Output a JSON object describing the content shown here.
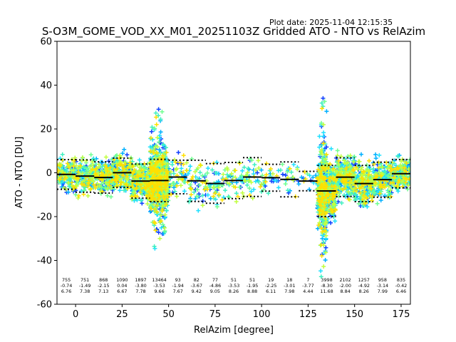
{
  "chart_data": {
    "type": "scatter",
    "plot_date": "Plot date: 2025-11-04 12:15:35",
    "title": "S-O3M_GOME_VOD_XX_M01_20251103Z Gridded ATO - NTO vs RelAzim",
    "xlabel": "RelAzim [degree]",
    "ylabel": "ATO - NTO [DU]",
    "xlim": [
      -10,
      180
    ],
    "ylim": [
      -60,
      60
    ],
    "xticks": [
      0,
      25,
      50,
      75,
      100,
      125,
      150,
      175
    ],
    "yticks": [
      -60,
      -40,
      -20,
      0,
      20,
      40,
      60
    ],
    "bins": [
      {
        "lo": -10,
        "hi": 0,
        "count": "755",
        "mean": "-0.74",
        "std": "6.76"
      },
      {
        "lo": 0,
        "hi": 10,
        "count": "751",
        "mean": "-1.49",
        "std": "7.38"
      },
      {
        "lo": 10,
        "hi": 20,
        "count": "868",
        "mean": "-2.15",
        "std": "7.13"
      },
      {
        "lo": 20,
        "hi": 30,
        "count": "1090",
        "mean": "0.04",
        "std": "6.67"
      },
      {
        "lo": 30,
        "hi": 40,
        "count": "1897",
        "mean": "-3.80",
        "std": "7.78"
      },
      {
        "lo": 40,
        "hi": 50,
        "count": "13464",
        "mean": "-3.53",
        "std": "9.66"
      },
      {
        "lo": 50,
        "hi": 60,
        "count": "93",
        "mean": "-1.94",
        "std": "7.67"
      },
      {
        "lo": 60,
        "hi": 70,
        "count": "82",
        "mean": "-3.67",
        "std": "9.42"
      },
      {
        "lo": 70,
        "hi": 80,
        "count": "77",
        "mean": "-4.86",
        "std": "9.05"
      },
      {
        "lo": 80,
        "hi": 90,
        "count": "51",
        "mean": "-3.53",
        "std": "8.26"
      },
      {
        "lo": 90,
        "hi": 100,
        "count": "51",
        "mean": "-1.95",
        "std": "8.88"
      },
      {
        "lo": 100,
        "hi": 110,
        "count": "19",
        "mean": "-2.25",
        "std": "6.11"
      },
      {
        "lo": 110,
        "hi": 120,
        "count": "18",
        "mean": "-3.01",
        "std": "7.98"
      },
      {
        "lo": 120,
        "hi": 130,
        "count": "7",
        "mean": "-3.77",
        "std": "4.44"
      },
      {
        "lo": 130,
        "hi": 140,
        "count": "3998",
        "mean": "-8.30",
        "std": "11.68"
      },
      {
        "lo": 140,
        "hi": 150,
        "count": "2102",
        "mean": "-2.00",
        "std": "8.84"
      },
      {
        "lo": 150,
        "hi": 160,
        "count": "1257",
        "mean": "-4.92",
        "std": "8.26"
      },
      {
        "lo": 160,
        "hi": 170,
        "count": "958",
        "mean": "-3.14",
        "std": "7.99"
      },
      {
        "lo": 170,
        "hi": 180,
        "count": "835",
        "mean": "-0.42",
        "std": "6.46"
      }
    ],
    "scatter_colors": [
      "#1040ff",
      "#00b0ff",
      "#20e0ff",
      "#40f0c0",
      "#70ff90",
      "#c0ff40",
      "#ffe000"
    ]
  }
}
